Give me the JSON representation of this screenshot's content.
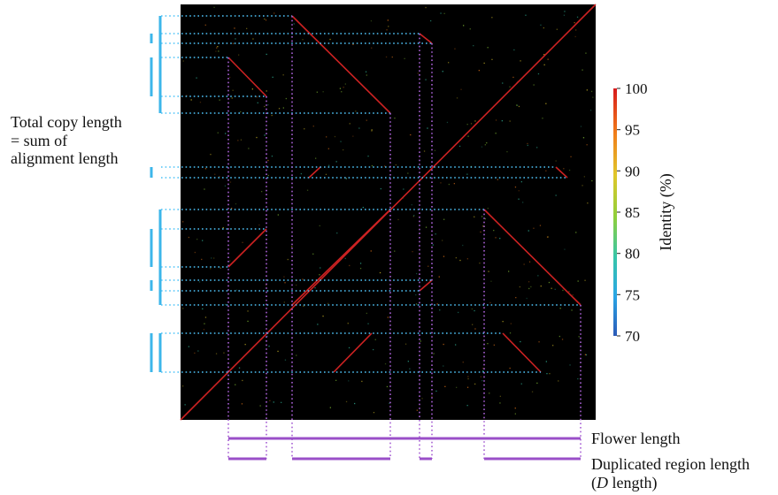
{
  "annotations": {
    "total_copy": {
      "line1": "Total copy length",
      "line2": "= sum of",
      "line3": "alignment length"
    },
    "flower_length": "Flower length",
    "duplicated_region": {
      "line1": "Duplicated region length",
      "line2_prefix": "(",
      "line2_italic": "D",
      "line2_suffix": " length)"
    }
  },
  "colorbar": {
    "title": "Identity (%)",
    "min": 70,
    "max": 100,
    "ticks": [
      "100",
      "95",
      "90",
      "85",
      "80",
      "75",
      "70"
    ],
    "colors": [
      "#d7191c",
      "#f17c1a",
      "#e0c72a",
      "#8fcf3a",
      "#37c6a8",
      "#2aa6e6",
      "#2b5ab8"
    ]
  },
  "plot": {
    "background": "#000000",
    "alignment_color": "#cc2222",
    "guide_blue": "#4fc3f7",
    "guide_purple": "#a75fd4",
    "bracket_blue": "#3cb6ea",
    "bar_purple": "#9a4fc8"
  }
}
